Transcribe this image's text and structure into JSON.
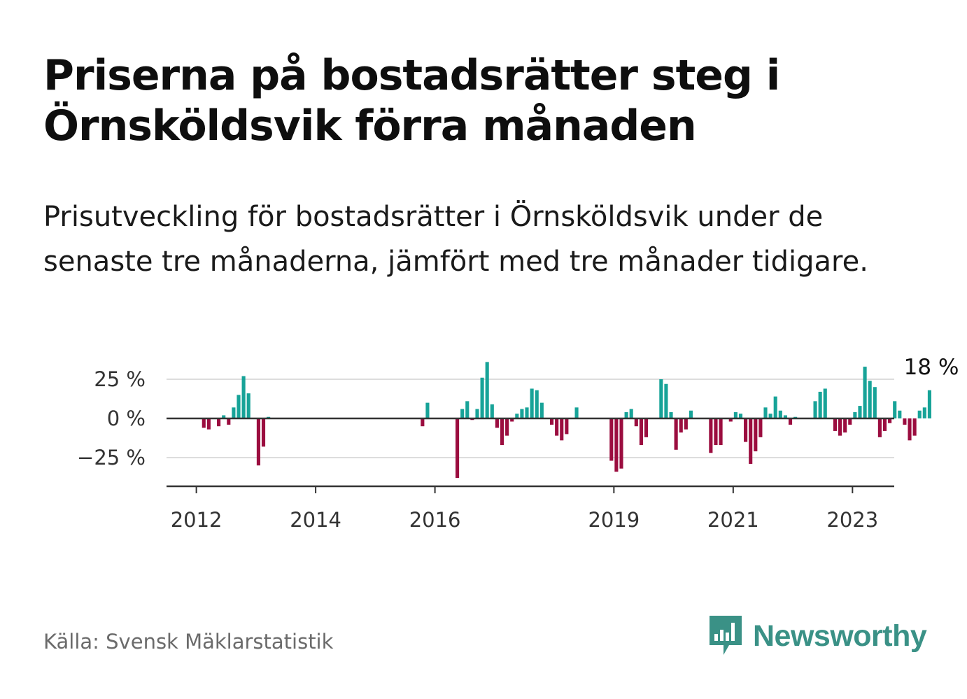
{
  "title": "Priserna på bostadsrätter steg i Örnsköldsvik förra månaden",
  "subtitle": "Prisutveckling för bostadsrätter i Örnsköldsvik under de senaste tre månaderna, jämfört med tre månader tidigare.",
  "source": "Källa: Svensk Mäklarstatistik",
  "logo_text": "Newsworthy",
  "colors": {
    "positive": "#17a398",
    "negative": "#9b0d3f",
    "grid": "#dddddd",
    "axis": "#333333",
    "brand": "#3a9186"
  },
  "chart_data": {
    "type": "bar",
    "title": "",
    "xlabel": "",
    "ylabel": "",
    "ylim": [
      -43,
      36
    ],
    "y_ticks": [
      25,
      0,
      -25
    ],
    "y_tick_labels": [
      "25 %",
      "0 %",
      "−25 %"
    ],
    "x_ticks": [
      2012,
      2014,
      2016,
      2019,
      2021,
      2023
    ],
    "x_tick_labels": [
      "2012",
      "2014",
      "2016",
      "2019",
      "2021",
      "2023"
    ],
    "x_range": [
      2011.5,
      2023.7
    ],
    "grid": true,
    "last_value_label": "18 %",
    "series": [
      {
        "start": "2012-01",
        "values": [
          0,
          -6,
          -7,
          0,
          -5,
          2,
          -4,
          7,
          15,
          27,
          16,
          0,
          -30,
          -18,
          1,
          0,
          0,
          0,
          0,
          0,
          0,
          0,
          0,
          0,
          0,
          0,
          0,
          0,
          0,
          0,
          0,
          0,
          0,
          0,
          0,
          0,
          0,
          0,
          0,
          0,
          0,
          0,
          0,
          0,
          0,
          -5,
          10,
          0,
          0,
          0,
          0,
          0,
          -38,
          6,
          11,
          -1,
          6,
          26,
          36,
          9,
          -6,
          -17,
          -11,
          -2,
          3,
          6,
          7,
          19,
          18,
          10,
          0,
          -4,
          -11,
          -14,
          -10,
          0,
          7,
          0,
          0,
          0,
          0,
          0,
          0,
          -27,
          -34,
          -32,
          4,
          6,
          -5,
          -17,
          -12,
          0,
          0,
          25,
          22,
          4,
          -20,
          -9,
          -7,
          5,
          0,
          0,
          0,
          -22,
          -17,
          -17,
          0,
          -2,
          4,
          3,
          -15,
          -29,
          -21,
          -12,
          7,
          3,
          14,
          5,
          2,
          -4,
          1,
          0,
          0,
          0,
          11,
          17,
          19,
          0,
          -8,
          -11,
          -9,
          -4,
          4,
          8,
          33,
          24,
          20,
          -12,
          -8,
          -3,
          11,
          5,
          -4,
          -14,
          -11,
          5,
          7,
          18
        ]
      }
    ]
  }
}
